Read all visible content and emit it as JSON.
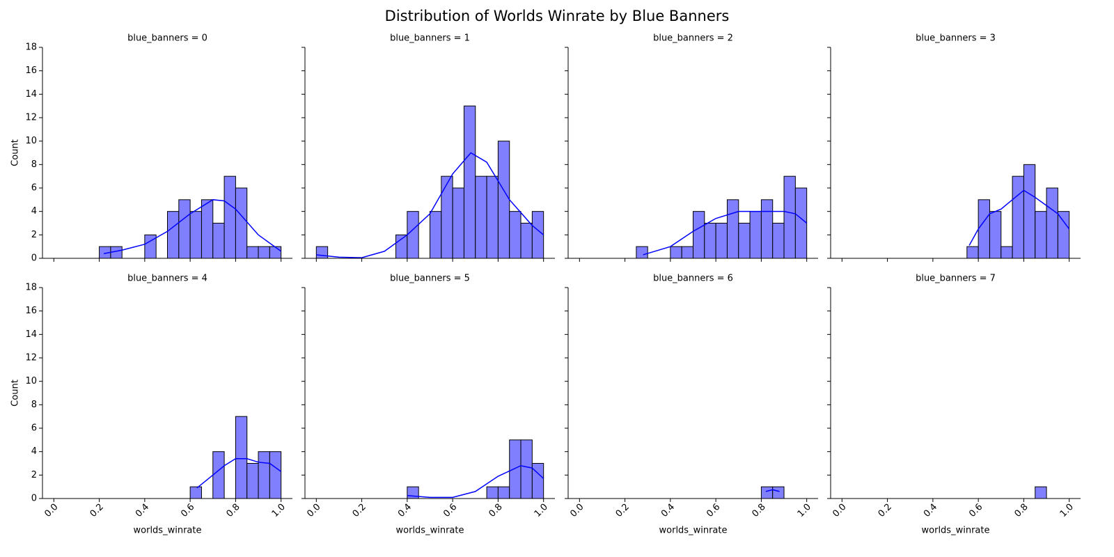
{
  "title": "Distribution of Worlds Winrate by Blue Banners",
  "chart_data": [
    {
      "type": "histogram",
      "title": "blue_banners = 0",
      "ylabel": "Count",
      "color": "#8080ff",
      "edgecolor": "#000000",
      "bins": [
        0.2,
        0.25,
        0.3,
        0.35,
        0.4,
        0.45,
        0.5,
        0.55,
        0.6,
        0.65,
        0.7,
        0.75,
        0.8,
        0.85,
        0.9,
        0.95,
        1.0
      ],
      "values": [
        1,
        1,
        0,
        0,
        2,
        0,
        4,
        5,
        4,
        5,
        3,
        7,
        6,
        1,
        1,
        1
      ],
      "kde": {
        "color": "#0000ff",
        "x": [
          0.22,
          0.3,
          0.4,
          0.5,
          0.6,
          0.7,
          0.75,
          0.8,
          0.9,
          1.0
        ],
        "values": [
          0.4,
          0.7,
          1.2,
          2.3,
          3.8,
          5.0,
          4.9,
          4.2,
          2.0,
          0.6
        ]
      },
      "xlim": [
        -0.05,
        1.05
      ],
      "ylim": [
        0,
        18
      ],
      "xticks": [
        {
          "value": 0,
          "label": "0.0"
        },
        {
          "value": 0.2,
          "label": "0.2"
        },
        {
          "value": 0.4,
          "label": "0.4"
        },
        {
          "value": 0.6,
          "label": "0.6"
        },
        {
          "value": 0.8,
          "label": "0.8"
        },
        {
          "value": 1,
          "label": "1.0"
        }
      ],
      "yticks": [
        0,
        2,
        4,
        6,
        8,
        10,
        12,
        14,
        16,
        18
      ]
    },
    {
      "type": "histogram",
      "title": "blue_banners = 1",
      "color": "#8080ff",
      "edgecolor": "#000000",
      "bins": [
        0,
        0.05,
        0.1,
        0.15,
        0.2,
        0.25,
        0.3,
        0.35,
        0.4,
        0.45,
        0.5,
        0.55,
        0.6,
        0.65,
        0.7,
        0.75,
        0.8,
        0.85,
        0.9,
        0.95,
        1.0
      ],
      "values": [
        1,
        0,
        0,
        0,
        0,
        0,
        0,
        2,
        4,
        0,
        4,
        7,
        6,
        13,
        7,
        7,
        10,
        4,
        3,
        4
      ],
      "kde": {
        "color": "#0000ff",
        "x": [
          0,
          0.1,
          0.2,
          0.3,
          0.4,
          0.5,
          0.6,
          0.68,
          0.75,
          0.85,
          0.95,
          1.0
        ],
        "values": [
          0.3,
          0.1,
          0.05,
          0.6,
          2.0,
          3.8,
          7.2,
          9.0,
          8.2,
          5.0,
          2.8,
          2.0
        ]
      },
      "xlim": [
        -0.05,
        1.05
      ],
      "ylim": [
        0,
        18
      ],
      "xticks": [
        {
          "value": 0,
          "label": "0.0"
        },
        {
          "value": 0.2,
          "label": "0.2"
        },
        {
          "value": 0.4,
          "label": "0.4"
        },
        {
          "value": 0.6,
          "label": "0.6"
        },
        {
          "value": 0.8,
          "label": "0.8"
        },
        {
          "value": 1,
          "label": "1.0"
        }
      ],
      "yticks": [
        0,
        2,
        4,
        6,
        8,
        10,
        12,
        14,
        16,
        18
      ]
    },
    {
      "type": "histogram",
      "title": "blue_banners = 2",
      "color": "#8080ff",
      "edgecolor": "#000000",
      "bins": [
        0.25,
        0.3,
        0.35,
        0.4,
        0.45,
        0.5,
        0.55,
        0.6,
        0.65,
        0.7,
        0.75,
        0.8,
        0.85,
        0.9,
        0.95,
        1.0
      ],
      "values": [
        1,
        0,
        0,
        1,
        1,
        4,
        3,
        3,
        5,
        3,
        4,
        5,
        3,
        7,
        6
      ],
      "kde": {
        "color": "#0000ff",
        "x": [
          0.28,
          0.4,
          0.5,
          0.6,
          0.7,
          0.8,
          0.9,
          0.95,
          1.0
        ],
        "values": [
          0.3,
          1.0,
          2.3,
          3.4,
          4.0,
          4.0,
          4.0,
          3.8,
          3.0
        ]
      },
      "xlim": [
        -0.05,
        1.05
      ],
      "ylim": [
        0,
        18
      ],
      "xticks": [
        {
          "value": 0,
          "label": "0.0"
        },
        {
          "value": 0.2,
          "label": "0.2"
        },
        {
          "value": 0.4,
          "label": "0.4"
        },
        {
          "value": 0.6,
          "label": "0.6"
        },
        {
          "value": 0.8,
          "label": "0.8"
        },
        {
          "value": 1,
          "label": "1.0"
        }
      ],
      "yticks": [
        0,
        2,
        4,
        6,
        8,
        10,
        12,
        14,
        16,
        18
      ]
    },
    {
      "type": "histogram",
      "title": "blue_banners = 3",
      "color": "#8080ff",
      "edgecolor": "#000000",
      "bins": [
        0.55,
        0.6,
        0.65,
        0.7,
        0.75,
        0.8,
        0.85,
        0.9,
        0.95,
        1.0
      ],
      "values": [
        1,
        5,
        4,
        1,
        7,
        8,
        4,
        6,
        4
      ],
      "kde": {
        "color": "#0000ff",
        "x": [
          0.56,
          0.6,
          0.65,
          0.7,
          0.75,
          0.8,
          0.85,
          0.9,
          0.95,
          1.0
        ],
        "values": [
          1.1,
          2.5,
          3.8,
          4.2,
          5.0,
          5.8,
          5.2,
          4.5,
          3.8,
          2.5
        ]
      },
      "xlim": [
        -0.05,
        1.05
      ],
      "ylim": [
        0,
        18
      ],
      "xticks": [
        {
          "value": 0,
          "label": "0.0"
        },
        {
          "value": 0.2,
          "label": "0.2"
        },
        {
          "value": 0.4,
          "label": "0.4"
        },
        {
          "value": 0.6,
          "label": "0.6"
        },
        {
          "value": 0.8,
          "label": "0.8"
        },
        {
          "value": 1,
          "label": "1.0"
        }
      ],
      "yticks": [
        0,
        2,
        4,
        6,
        8,
        10,
        12,
        14,
        16,
        18
      ]
    },
    {
      "type": "histogram",
      "title": "blue_banners = 4",
      "xlabel": "worlds_winrate",
      "ylabel": "Count",
      "color": "#8080ff",
      "edgecolor": "#000000",
      "bins": [
        0.6,
        0.65,
        0.7,
        0.75,
        0.8,
        0.85,
        0.9,
        0.95,
        1.0
      ],
      "values": [
        1,
        0,
        4,
        0,
        7,
        3,
        4,
        4
      ],
      "kde": {
        "color": "#0000ff",
        "x": [
          0.63,
          0.7,
          0.75,
          0.8,
          0.85,
          0.9,
          0.95,
          1.0
        ],
        "values": [
          0.9,
          2.0,
          2.8,
          3.4,
          3.4,
          3.1,
          3.0,
          2.3
        ]
      },
      "xlim": [
        -0.05,
        1.05
      ],
      "ylim": [
        0,
        18
      ],
      "xticks": [
        {
          "value": 0,
          "label": "0.0"
        },
        {
          "value": 0.2,
          "label": "0.2"
        },
        {
          "value": 0.4,
          "label": "0.4"
        },
        {
          "value": 0.6,
          "label": "0.6"
        },
        {
          "value": 0.8,
          "label": "0.8"
        },
        {
          "value": 1,
          "label": "1.0"
        }
      ],
      "yticks": [
        0,
        2,
        4,
        6,
        8,
        10,
        12,
        14,
        16,
        18
      ]
    },
    {
      "type": "histogram",
      "title": "blue_banners = 5",
      "xlabel": "worlds_winrate",
      "color": "#8080ff",
      "edgecolor": "#000000",
      "bins": [
        0.4,
        0.45,
        0.5,
        0.55,
        0.6,
        0.65,
        0.7,
        0.75,
        0.8,
        0.85,
        0.9,
        0.95,
        1.0
      ],
      "values": [
        1,
        0,
        0,
        0,
        0,
        0,
        0,
        1,
        1,
        5,
        5,
        3
      ],
      "kde": {
        "color": "#0000ff",
        "x": [
          0.4,
          0.5,
          0.6,
          0.7,
          0.8,
          0.9,
          0.95,
          1.0
        ],
        "values": [
          0.25,
          0.1,
          0.1,
          0.6,
          1.9,
          2.8,
          2.6,
          1.7
        ]
      },
      "xlim": [
        -0.05,
        1.05
      ],
      "ylim": [
        0,
        18
      ],
      "xticks": [
        {
          "value": 0,
          "label": "0.0"
        },
        {
          "value": 0.2,
          "label": "0.2"
        },
        {
          "value": 0.4,
          "label": "0.4"
        },
        {
          "value": 0.6,
          "label": "0.6"
        },
        {
          "value": 0.8,
          "label": "0.8"
        },
        {
          "value": 1,
          "label": "1.0"
        }
      ],
      "yticks": [
        0,
        2,
        4,
        6,
        8,
        10,
        12,
        14,
        16,
        18
      ]
    },
    {
      "type": "histogram",
      "title": "blue_banners = 6",
      "xlabel": "worlds_winrate",
      "color": "#8080ff",
      "edgecolor": "#000000",
      "bins": [
        0.8,
        0.85,
        0.9
      ],
      "values": [
        1,
        1
      ],
      "kde": {
        "color": "#0000ff",
        "x": [
          0.82,
          0.85,
          0.88
        ],
        "values": [
          0.6,
          0.75,
          0.6
        ]
      },
      "xlim": [
        -0.05,
        1.05
      ],
      "ylim": [
        0,
        18
      ],
      "xticks": [
        {
          "value": 0,
          "label": "0.0"
        },
        {
          "value": 0.2,
          "label": "0.2"
        },
        {
          "value": 0.4,
          "label": "0.4"
        },
        {
          "value": 0.6,
          "label": "0.6"
        },
        {
          "value": 0.8,
          "label": "0.8"
        },
        {
          "value": 1,
          "label": "1.0"
        }
      ],
      "yticks": [
        0,
        2,
        4,
        6,
        8,
        10,
        12,
        14,
        16,
        18
      ]
    },
    {
      "type": "histogram",
      "title": "blue_banners = 7",
      "xlabel": "worlds_winrate",
      "color": "#8080ff",
      "edgecolor": "#000000",
      "bins": [
        0.85,
        0.9
      ],
      "values": [
        1
      ],
      "xlim": [
        -0.05,
        1.05
      ],
      "ylim": [
        0,
        18
      ],
      "xticks": [
        {
          "value": 0,
          "label": "0.0"
        },
        {
          "value": 0.2,
          "label": "0.2"
        },
        {
          "value": 0.4,
          "label": "0.4"
        },
        {
          "value": 0.6,
          "label": "0.6"
        },
        {
          "value": 0.8,
          "label": "0.8"
        },
        {
          "value": 1,
          "label": "1.0"
        }
      ],
      "yticks": [
        0,
        2,
        4,
        6,
        8,
        10,
        12,
        14,
        16,
        18
      ]
    }
  ]
}
